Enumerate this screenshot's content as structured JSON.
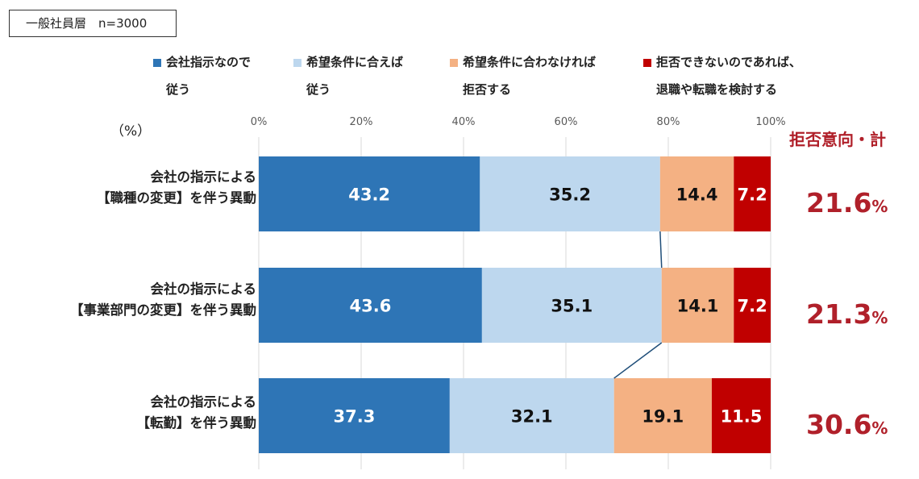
{
  "sample_label": "一般社員層　n=3000",
  "unit_label": "（%）",
  "reject_title": "拒否意向・計",
  "colors": {
    "s1": "#2e75b6",
    "s2": "#bdd7ee",
    "s3": "#f4b183",
    "s4": "#c00000",
    "total_text": "#b0202a",
    "grid": "#d9d9d9",
    "connector": "#1f4e79"
  },
  "chart_data": {
    "type": "bar",
    "orientation": "horizontal",
    "stacked": true,
    "xlim": [
      0,
      100
    ],
    "ticks": [
      "0%",
      "20%",
      "40%",
      "60%",
      "80%",
      "100%"
    ],
    "categories": [
      [
        "会社の指示による",
        "【職種の変更】を伴う異動"
      ],
      [
        "会社の指示による",
        "【事業部門の変更】を伴う異動"
      ],
      [
        "会社の指示による",
        "【転勤】を伴う異動"
      ]
    ],
    "series": [
      {
        "name": "会社指示なので従う",
        "label_lines": [
          "会社指示なので",
          "従う"
        ],
        "values": [
          43.2,
          43.6,
          37.3
        ]
      },
      {
        "name": "希望条件に合えば従う",
        "label_lines": [
          "希望条件に合えば",
          "従う"
        ],
        "values": [
          35.2,
          35.1,
          32.1
        ]
      },
      {
        "name": "希望条件に合わなければ拒否する",
        "label_lines": [
          "希望条件に合わなければ",
          "拒否する"
        ],
        "values": [
          14.4,
          14.1,
          19.1
        ]
      },
      {
        "name": "拒否できないのであれば、退職や転職を検討する",
        "label_lines": [
          "拒否できないのであれば、",
          "退職や転職を検討する"
        ],
        "values": [
          7.2,
          7.2,
          11.5
        ]
      }
    ],
    "totals": [
      {
        "value": "21.6",
        "unit": "%"
      },
      {
        "value": "21.3",
        "unit": "%"
      },
      {
        "value": "30.6",
        "unit": "%"
      }
    ]
  }
}
